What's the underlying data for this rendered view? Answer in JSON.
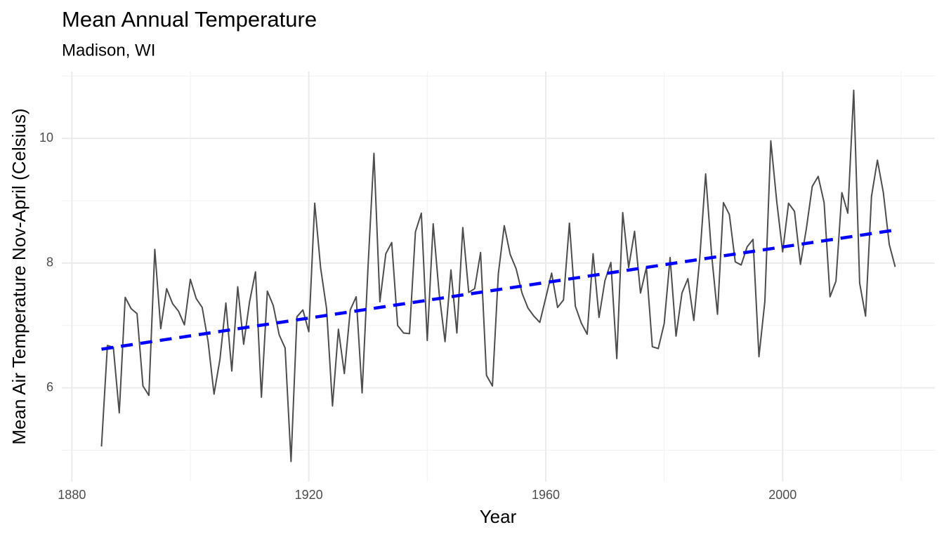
{
  "chart_data": {
    "type": "line",
    "title": "Mean Annual Temperature",
    "subtitle": "Madison, WI",
    "x_label": "Year",
    "y_label": "Mean Air Temperature Nov-April (Celsius)",
    "x": [
      1885,
      1886,
      1887,
      1888,
      1889,
      1890,
      1891,
      1892,
      1893,
      1894,
      1895,
      1896,
      1897,
      1898,
      1899,
      1900,
      1901,
      1902,
      1903,
      1904,
      1905,
      1906,
      1907,
      1908,
      1909,
      1910,
      1911,
      1912,
      1913,
      1914,
      1915,
      1916,
      1917,
      1918,
      1919,
      1920,
      1921,
      1922,
      1923,
      1924,
      1925,
      1926,
      1927,
      1928,
      1929,
      1930,
      1931,
      1932,
      1933,
      1934,
      1935,
      1936,
      1937,
      1938,
      1939,
      1940,
      1941,
      1942,
      1943,
      1944,
      1945,
      1946,
      1947,
      1948,
      1949,
      1950,
      1951,
      1952,
      1953,
      1954,
      1955,
      1956,
      1957,
      1958,
      1959,
      1960,
      1961,
      1962,
      1963,
      1964,
      1965,
      1966,
      1967,
      1968,
      1969,
      1970,
      1971,
      1972,
      1973,
      1974,
      1975,
      1976,
      1977,
      1978,
      1979,
      1980,
      1981,
      1982,
      1983,
      1984,
      1985,
      1986,
      1987,
      1988,
      1989,
      1990,
      1991,
      1992,
      1993,
      1994,
      1995,
      1996,
      1997,
      1998,
      1999,
      2000,
      2001,
      2002,
      2003,
      2004,
      2005,
      2006,
      2007,
      2008,
      2009,
      2010,
      2011,
      2012,
      2013,
      2014,
      2015,
      2016,
      2017,
      2018,
      2019
    ],
    "series": [
      {
        "color": "#4d4d4d",
        "values": [
          5.06,
          6.68,
          6.65,
          5.6,
          7.45,
          7.27,
          7.19,
          6.03,
          5.88,
          8.22,
          6.95,
          7.59,
          7.35,
          7.23,
          7.01,
          7.74,
          7.43,
          7.29,
          6.74,
          5.9,
          6.46,
          7.36,
          6.27,
          7.62,
          6.7,
          7.38,
          7.86,
          5.85,
          7.55,
          7.32,
          6.85,
          6.64,
          4.82,
          7.14,
          7.25,
          6.9,
          8.96,
          7.92,
          7.27,
          5.71,
          6.94,
          6.23,
          7.25,
          7.46,
          5.92,
          7.94,
          9.76,
          7.38,
          8.15,
          8.33,
          7.0,
          6.88,
          6.87,
          8.5,
          8.8,
          6.76,
          8.63,
          7.52,
          6.74,
          7.89,
          6.88,
          8.57,
          7.53,
          7.59,
          8.17,
          6.2,
          6.03,
          7.83,
          8.6,
          8.14,
          7.91,
          7.52,
          7.28,
          7.15,
          7.05,
          7.44,
          7.84,
          7.29,
          7.41,
          8.64,
          7.31,
          7.04,
          6.86,
          8.15,
          7.13,
          7.72,
          8.01,
          6.47,
          8.81,
          7.93,
          8.51,
          7.52,
          7.93,
          6.66,
          6.63,
          7.03,
          8.09,
          6.83,
          7.52,
          7.75,
          7.08,
          8.07,
          9.43,
          8.14,
          7.18,
          8.97,
          8.78,
          8.02,
          7.97,
          8.26,
          8.38,
          6.5,
          7.39,
          9.96,
          8.99,
          8.18,
          8.96,
          8.83,
          7.98,
          8.55,
          9.23,
          9.39,
          8.97,
          7.46,
          7.71,
          9.13,
          8.8,
          10.77,
          7.68,
          7.15,
          9.07,
          9.65,
          9.13,
          8.3,
          7.94
        ]
      }
    ],
    "trend": {
      "x": [
        1885,
        2019
      ],
      "values": [
        6.62,
        8.53
      ],
      "color": "#0000ff",
      "dashed": true
    },
    "xlim": [
      1878.3,
      2025.7
    ],
    "ylim": [
      4.5,
      11.07
    ],
    "xticks": [
      1880,
      1920,
      1960,
      2000
    ],
    "yticks": [
      6,
      8,
      10
    ],
    "x_minor_grid": [
      1900,
      1940,
      1980,
      2020
    ],
    "y_minor_grid": [
      5,
      7,
      9,
      11
    ],
    "grid": true
  }
}
